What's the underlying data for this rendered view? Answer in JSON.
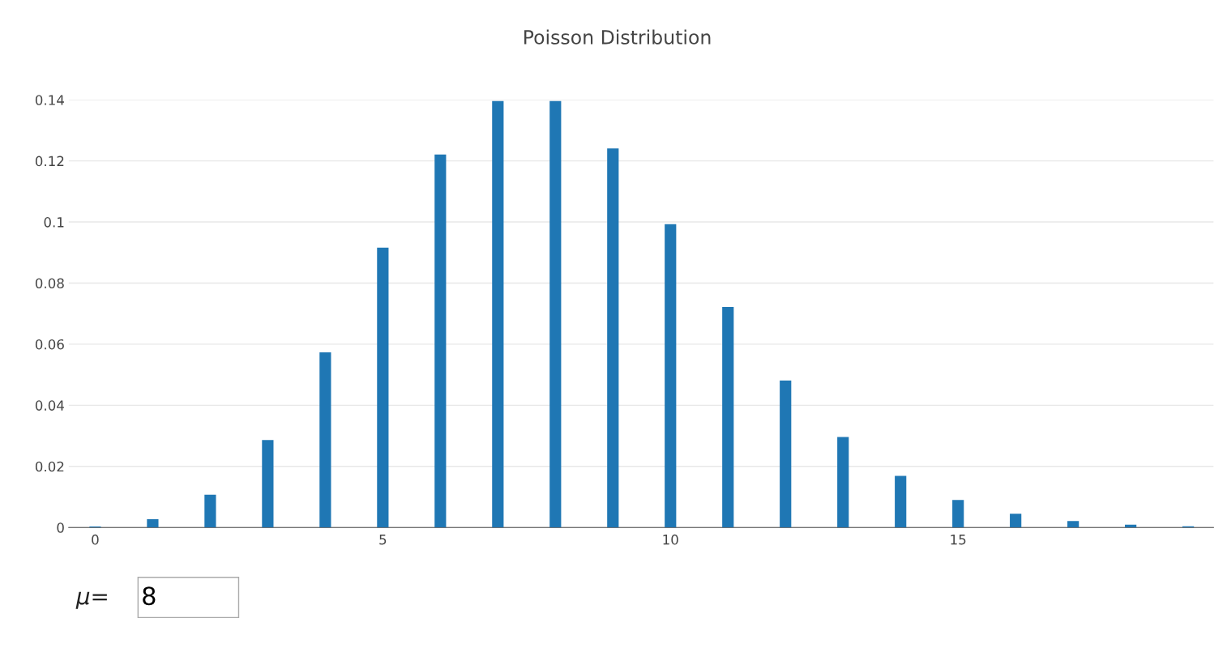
{
  "chart_data": {
    "type": "bar",
    "title": "Poisson Distribution",
    "x": [
      0,
      1,
      2,
      3,
      4,
      5,
      6,
      7,
      8,
      9,
      10,
      11,
      12,
      13,
      14,
      15,
      16,
      17,
      18,
      19
    ],
    "values": [
      0.0003,
      0.0027,
      0.0107,
      0.0286,
      0.0573,
      0.0916,
      0.1221,
      0.1396,
      0.1396,
      0.1241,
      0.0993,
      0.0722,
      0.0481,
      0.0296,
      0.0169,
      0.009,
      0.0045,
      0.0021,
      0.0009,
      0.0004
    ],
    "color": "#1f77b4",
    "xlim": [
      -0.46,
      19.44
    ],
    "xticks": [
      0,
      5,
      10,
      15
    ],
    "ylim": [
      0,
      0.14
    ],
    "yticks": [
      0,
      0.02,
      0.04,
      0.06,
      0.08,
      0.1,
      0.12,
      0.14
    ],
    "grid": "y",
    "annotations": [
      "μ=",
      "8"
    ]
  }
}
